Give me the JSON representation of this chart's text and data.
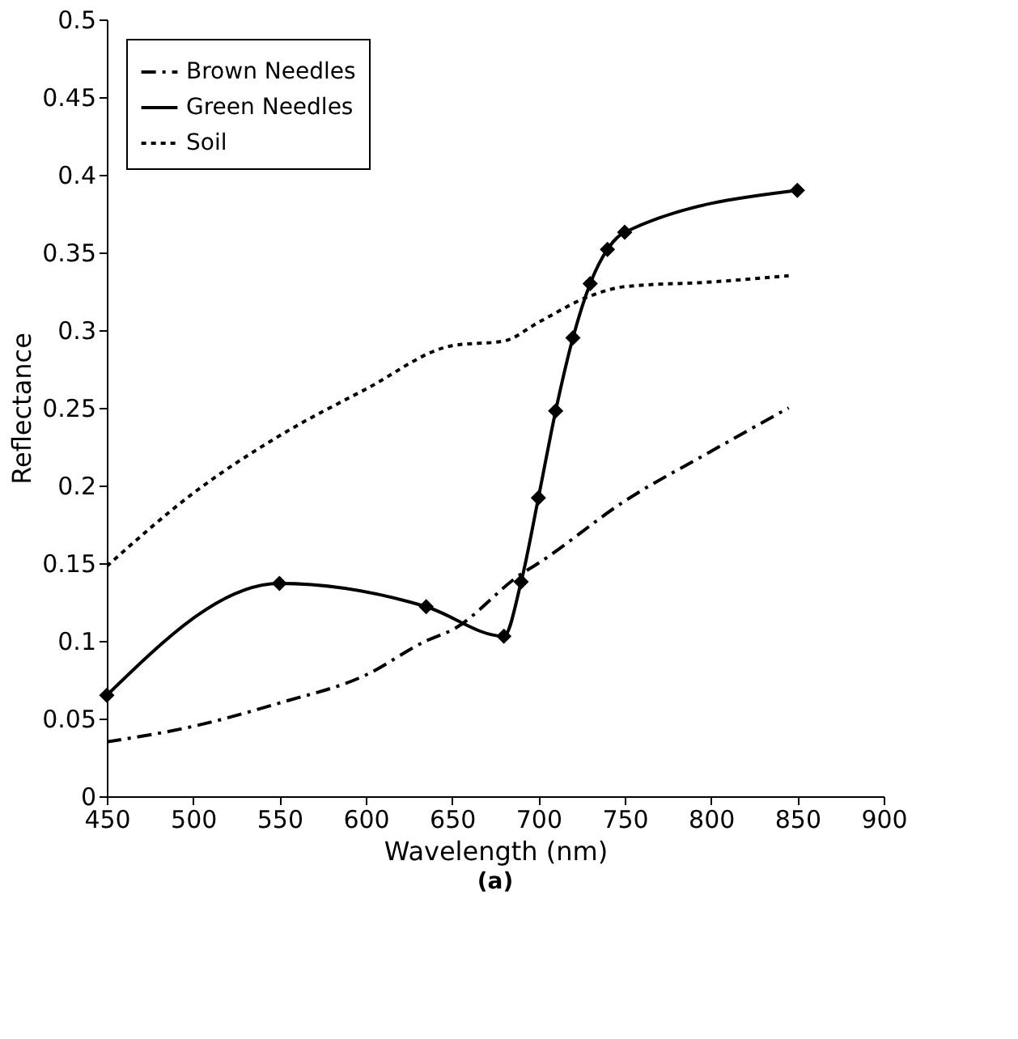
{
  "chart_data": {
    "type": "line",
    "xlabel": "Wavelength (nm)",
    "ylabel": "Reflectance",
    "annotations": [
      "(a)"
    ],
    "xlim": [
      450,
      900
    ],
    "xticks": [
      450,
      500,
      550,
      600,
      650,
      700,
      750,
      800,
      850,
      900
    ],
    "ylim": [
      0,
      0.5
    ],
    "yticks": [
      0,
      0.05,
      0.1,
      0.15,
      0.2,
      0.25,
      0.3,
      0.35,
      0.4,
      0.45,
      0.5
    ],
    "grid": false,
    "legend": "top left",
    "series": [
      {
        "name": "Brown Needles",
        "color": "#000000",
        "line_style": "dashed",
        "marker": "none",
        "x": [
          450,
          500,
          550,
          600,
          635,
          650,
          690,
          700,
          750,
          800,
          845
        ],
        "values": [
          0.035,
          0.045,
          0.06,
          0.078,
          0.1,
          0.107,
          0.143,
          0.15,
          0.19,
          0.222,
          0.25
        ]
      },
      {
        "name": "Green Needles",
        "color": "#000000",
        "line_style": "solid",
        "marker": "diamond",
        "x": [
          450,
          550,
          635,
          680,
          690,
          700,
          710,
          720,
          730,
          740,
          750,
          850
        ],
        "values": [
          0.065,
          0.137,
          0.122,
          0.103,
          0.138,
          0.192,
          0.248,
          0.295,
          0.33,
          0.352,
          0.363,
          0.39
        ]
      },
      {
        "name": "Soil",
        "color": "#000000",
        "line_style": "dotted",
        "marker": "none",
        "x": [
          450,
          500,
          550,
          600,
          650,
          680,
          700,
          730,
          750,
          800,
          845
        ],
        "values": [
          0.148,
          0.195,
          0.232,
          0.262,
          0.29,
          0.293,
          0.305,
          0.322,
          0.328,
          0.331,
          0.335
        ]
      }
    ]
  }
}
